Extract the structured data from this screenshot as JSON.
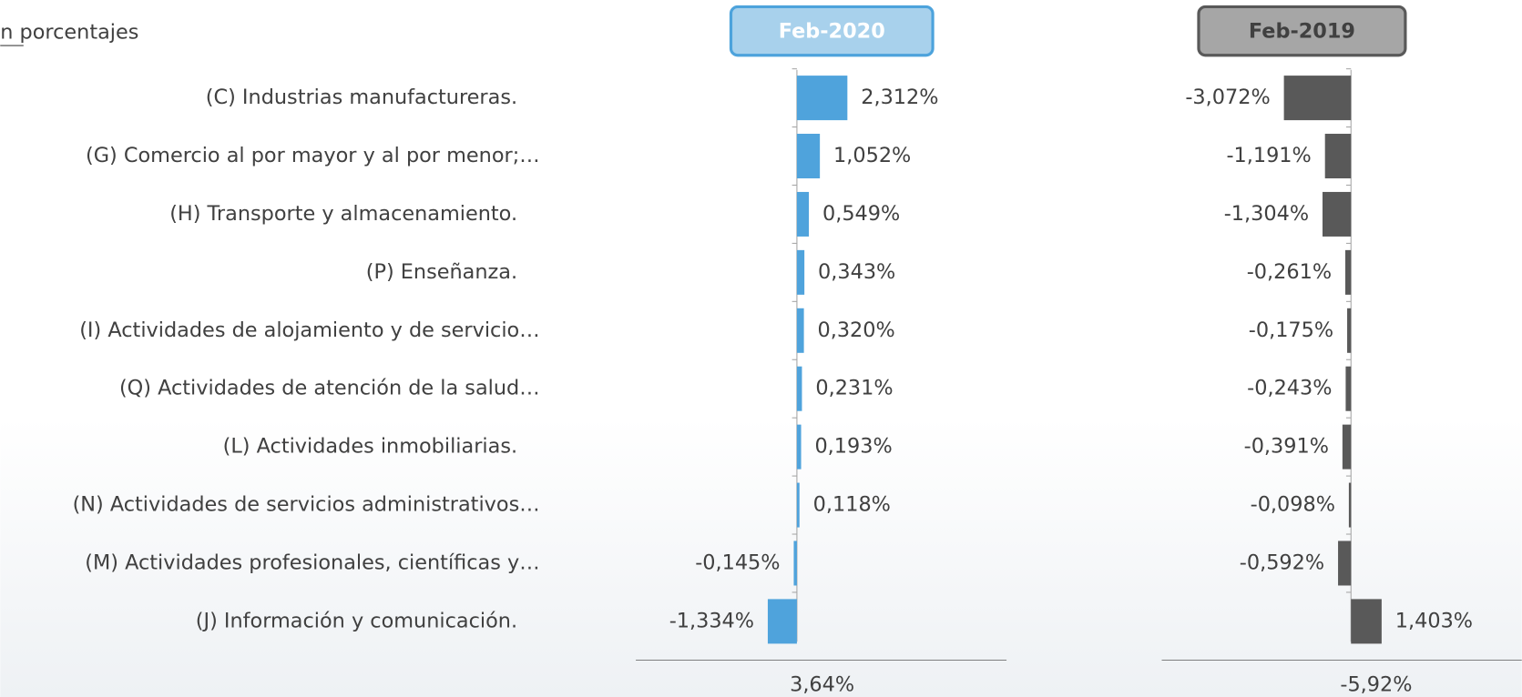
{
  "chart_data": {
    "type": "bar",
    "orientation": "horizontal",
    "subtitle": "n porcentajes",
    "categories": [
      "(C) Industrias manufactureras.",
      "(G) Comercio al por mayor y al por menor;…",
      "(H) Transporte y almacenamiento.",
      "(P) Enseñanza.",
      "(I) Actividades de alojamiento y de servicio…",
      "(Q) Actividades de atención de la salud…",
      "(L) Actividades inmobiliarias.",
      "(N) Actividades de servicios administrativos…",
      "(M) Actividades profesionales, científicas y…",
      "(J) Información y comunicación."
    ],
    "series": [
      {
        "name": "Feb-2020",
        "color": "#4fa3dc",
        "values": [
          2.312,
          1.052,
          0.549,
          0.343,
          0.32,
          0.231,
          0.193,
          0.118,
          -0.145,
          -1.334
        ],
        "value_labels": [
          "2,312%",
          "1,052%",
          "0,549%",
          "0,343%",
          "0,320%",
          "0,231%",
          "0,193%",
          "0,118%",
          "-0,145%",
          "-1,334%"
        ],
        "total": 3.64,
        "total_label": "3,64%"
      },
      {
        "name": "Feb-2019",
        "color": "#595959",
        "values": [
          -3.072,
          -1.191,
          -1.304,
          -0.261,
          -0.175,
          -0.243,
          -0.391,
          -0.098,
          -0.592,
          1.403
        ],
        "value_labels": [
          "-3,072%",
          "-1,191%",
          "-1,304%",
          "-0,261%",
          "-0,175%",
          "-0,243%",
          "-0,391%",
          "-0,098%",
          "-0,592%",
          "1,403%"
        ],
        "total": -5.92,
        "total_label": "-5,92%"
      }
    ]
  }
}
